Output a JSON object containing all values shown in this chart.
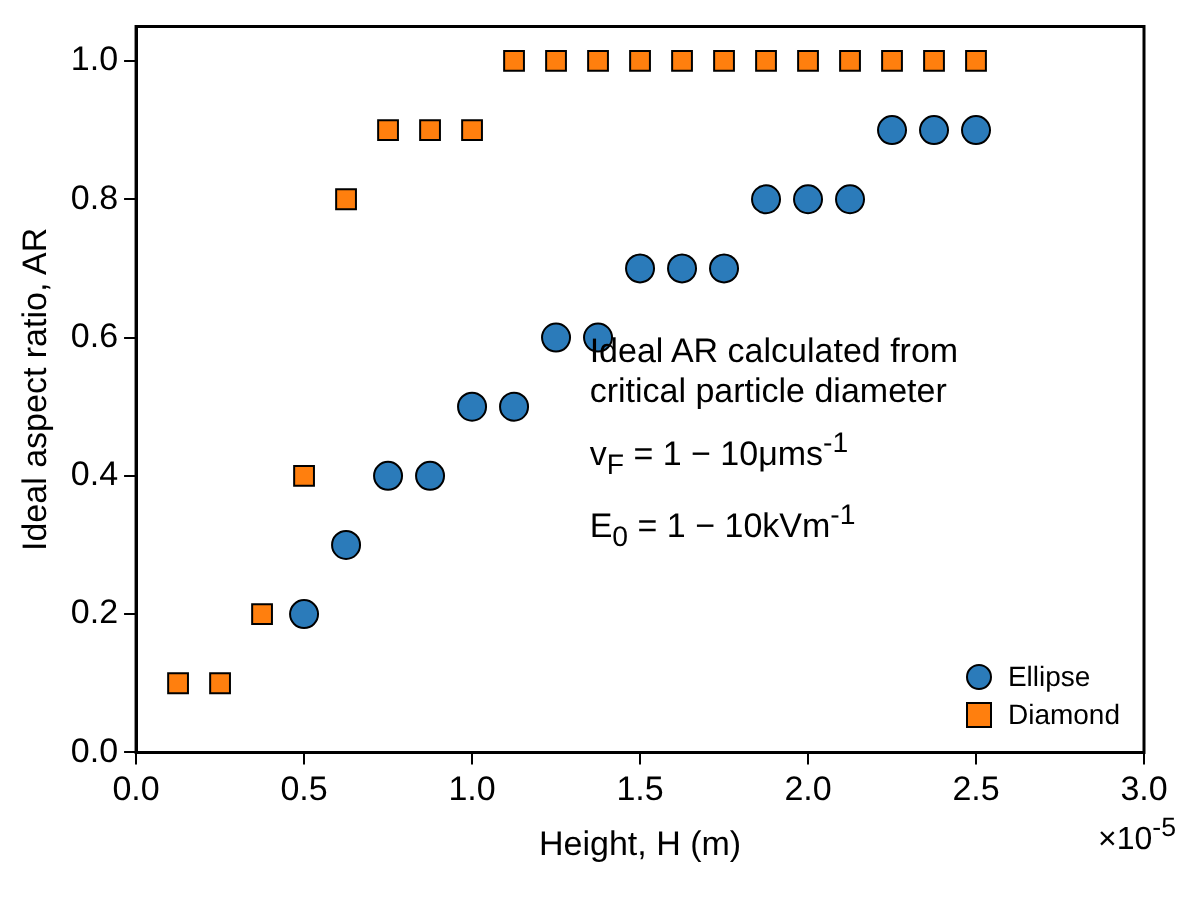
{
  "chart_data": {
    "type": "scatter",
    "xlabel": "Height, H (m)",
    "ylabel": "Ideal aspect ratio, AR",
    "annotations": [
      "Ideal AR calculated from critical particle diameter",
      "v$_{F}$ = 1 − 10μms$^{-1}$",
      "E$_{0}$ = 1 − 10kVm$^{-1}$",
      "×10$^{-5}$"
    ],
    "series": [
      {
        "name": "Ellipse",
        "color": "#2b7bba",
        "marker": "circle",
        "x": [
          0.5,
          0.625,
          0.75,
          0.875,
          1.0,
          1.125,
          1.25,
          1.375,
          1.5,
          1.625,
          1.75,
          1.875,
          2.0,
          2.125,
          2.25,
          2.375,
          2.5
        ],
        "values": [
          0.2,
          0.3,
          0.4,
          0.4,
          0.5,
          0.5,
          0.6,
          0.6,
          0.7,
          0.7,
          0.7,
          0.8,
          0.8,
          0.8,
          0.9,
          0.9,
          0.9
        ]
      },
      {
        "name": "Diamond",
        "color": "#ff7f0e",
        "marker": "square",
        "x": [
          0.125,
          0.25,
          0.375,
          0.5,
          0.625,
          0.75,
          0.875,
          1.0,
          1.125,
          1.25,
          1.375,
          1.5,
          1.625,
          1.75,
          1.875,
          2.0,
          2.125,
          2.25,
          2.375,
          2.5
        ],
        "values": [
          0.1,
          0.1,
          0.2,
          0.4,
          0.8,
          0.9,
          0.9,
          0.9,
          1.0,
          1.0,
          1.0,
          1.0,
          1.0,
          1.0,
          1.0,
          1.0,
          1.0,
          1.0,
          1.0,
          1.0
        ]
      }
    ],
    "xlim": [
      0,
      3.0
    ],
    "xticks": [
      {
        "value": 0,
        "label": "0.0"
      },
      {
        "value": 0.5,
        "label": "0.5"
      },
      {
        "value": 1.0,
        "label": "1.0"
      },
      {
        "value": 1.5,
        "label": "1.5"
      },
      {
        "value": 2.0,
        "label": "2.0"
      },
      {
        "value": 2.5,
        "label": "2.5"
      },
      {
        "value": 3.0,
        "label": "3.0"
      }
    ],
    "ylim": [
      0,
      1.05
    ],
    "yticks": [
      {
        "value": 0,
        "label": "0.0"
      },
      {
        "value": 0.2,
        "label": "0.2"
      },
      {
        "value": 0.4,
        "label": "0.4"
      },
      {
        "value": 0.6,
        "label": "0.6"
      },
      {
        "value": 0.8,
        "label": "0.8"
      },
      {
        "value": 1.0,
        "label": "1.0"
      }
    ],
    "grid": false,
    "legend": "bottom right"
  }
}
